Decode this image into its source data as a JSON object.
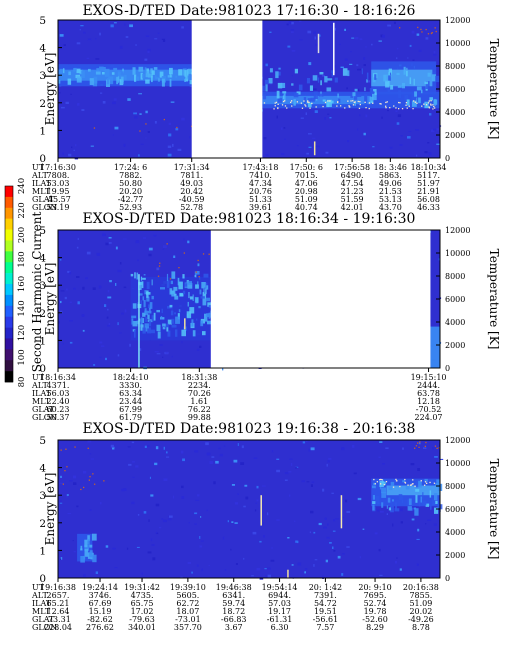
{
  "colorbar": {
    "label": "Second Harmonic Current",
    "ticks": [
      "240",
      "220",
      "200",
      "180",
      "160",
      "140",
      "120",
      "100",
      "80"
    ]
  },
  "panels": [
    {
      "title": "EXOS-D/TED   Date:981023  17:16:30 - 18:16:26",
      "ylabel_left": "Energy [eV]",
      "ylabel_right": "Temperature [K]",
      "gap": [
        0.35,
        0.535
      ],
      "yticks_left": [
        "5",
        "4",
        "3",
        "2",
        "1",
        "0"
      ],
      "yticks_right": [
        "12000",
        "10000",
        "8000",
        "6000",
        "4000",
        "2000",
        "0"
      ],
      "row_labels": [
        "UT",
        "ALT",
        "ILAT",
        "MLT",
        "GLAT",
        "GLON"
      ],
      "columns": [
        {
          "pos": 0.0,
          "values": [
            "17:16:30",
            "7808.",
            "53.03",
            "19.95",
            "-45.57",
            "53.19"
          ]
        },
        {
          "pos": 0.19,
          "values": [
            "17:24: 6",
            "7882.",
            "50.80",
            "20.20",
            "-42.77",
            "52.93"
          ]
        },
        {
          "pos": 0.35,
          "values": [
            "17:31:34",
            "7811.",
            "49.03",
            "20.42",
            "-40.59",
            "52.78"
          ]
        },
        {
          "pos": 0.53,
          "values": [
            "17:43:18",
            "7410.",
            "47.34",
            "20.76",
            "51.33",
            "39.61"
          ]
        },
        {
          "pos": 0.65,
          "values": [
            "17:50: 6",
            "7015.",
            "47.06",
            "20.98",
            "51.09",
            "40.74"
          ]
        },
        {
          "pos": 0.77,
          "values": [
            "17:56:58",
            "6490.",
            "47.54",
            "21.23",
            "51.59",
            "42.01"
          ]
        },
        {
          "pos": 0.87,
          "values": [
            "18: 3:46",
            "5863.",
            "49.06",
            "21.53",
            "53.13",
            "43.70"
          ]
        },
        {
          "pos": 0.97,
          "values": [
            "18:10:34",
            "5117.",
            "51.97",
            "21.91",
            "56.08",
            "46.33"
          ]
        }
      ]
    },
    {
      "title": "EXOS-D/TED   Date:981023  18:16:34 - 19:16:30",
      "ylabel_left": "Energy [eV]",
      "ylabel_right": "Temperature [K]",
      "gap": [
        0.4,
        0.975
      ],
      "yticks_left": [
        "5",
        "4",
        "3",
        "2",
        "1",
        "0"
      ],
      "yticks_right": [
        "12000",
        "10000",
        "8000",
        "6000",
        "4000",
        "2000",
        "0"
      ],
      "row_labels": [
        "UT",
        "ALT",
        "ILAT",
        "MLT",
        "GLAT",
        "GLON"
      ],
      "columns": [
        {
          "pos": 0.0,
          "values": [
            "18:16:34",
            "4371.",
            "56.03",
            "22.40",
            "60.23",
            "50.37"
          ]
        },
        {
          "pos": 0.19,
          "values": [
            "18:24:10",
            "3330.",
            "63.34",
            "23.44",
            "67.99",
            "61.79"
          ]
        },
        {
          "pos": 0.37,
          "values": [
            "18:31:38",
            "2234.",
            "70.26",
            "1.61",
            "76.22",
            "99.88"
          ]
        },
        {
          "pos": 0.97,
          "values": [
            "19:15:10",
            "2444.",
            "63.78",
            "12.18",
            "-70.52",
            "224.07"
          ]
        }
      ]
    },
    {
      "title": "EXOS-D/TED   Date:981023  19:16:38 - 20:16:38",
      "ylabel_left": "Energy [eV]",
      "ylabel_right": "Temperature [K]",
      "gap": null,
      "yticks_left": [
        "5",
        "4",
        "3",
        "2",
        "1",
        "0"
      ],
      "yticks_right": [
        "12000",
        "10000",
        "8000",
        "6000",
        "4000",
        "2000",
        "0"
      ],
      "row_labels": [
        "UT",
        "ALT",
        "ILAT",
        "MLT",
        "GLAT",
        "GLON"
      ],
      "columns": [
        {
          "pos": 0.0,
          "values": [
            "19:16:38",
            "2657.",
            "65.21",
            "12.64",
            "-73.31",
            "228.04"
          ]
        },
        {
          "pos": 0.11,
          "values": [
            "19:24:14",
            "3746.",
            "67.69",
            "15.19",
            "-82.62",
            "276.62"
          ]
        },
        {
          "pos": 0.22,
          "values": [
            "19:31:42",
            "4735.",
            "65.75",
            "17.02",
            "-79.63",
            "340.01"
          ]
        },
        {
          "pos": 0.34,
          "values": [
            "19:39:10",
            "5605.",
            "62.72",
            "18.07",
            "-73.01",
            "357.70"
          ]
        },
        {
          "pos": 0.46,
          "values": [
            "19:46:38",
            "6341.",
            "59.74",
            "18.72",
            "-66.83",
            "3.67"
          ]
        },
        {
          "pos": 0.58,
          "values": [
            "19:54:14",
            "6944.",
            "57.03",
            "19.17",
            "-61.31",
            "6.30"
          ]
        },
        {
          "pos": 0.7,
          "values": [
            "20: 1:42",
            "7391.",
            "54.72",
            "19.51",
            "-56.61",
            "7.57"
          ]
        },
        {
          "pos": 0.83,
          "values": [
            "20: 9:10",
            "7695.",
            "52.74",
            "19.78",
            "-52.60",
            "8.29"
          ]
        },
        {
          "pos": 0.95,
          "values": [
            "20:16:38",
            "7855.",
            "51.09",
            "20.02",
            "-49.26",
            "8.78"
          ]
        }
      ]
    }
  ],
  "chart_data": [
    {
      "type": "heatmap",
      "title": "EXOS-D/TED   Date:981023  17:16:30 - 18:16:26",
      "xlabel": "UT",
      "ylabel": "Energy [eV]",
      "y2label": "Temperature [K]",
      "ylim": [
        0,
        5
      ],
      "y2lim": [
        0,
        12000
      ],
      "x": [
        "17:16:30",
        "17:24: 6",
        "17:31:34",
        "17:43:18",
        "17:50: 6",
        "17:56:58",
        "18: 3:46",
        "18:10:34"
      ],
      "z_label": "Second Harmonic Current",
      "zlim": [
        80,
        240
      ]
    },
    {
      "type": "heatmap",
      "title": "EXOS-D/TED   Date:981023  18:16:34 - 19:16:30",
      "xlabel": "UT",
      "ylabel": "Energy [eV]",
      "y2label": "Temperature [K]",
      "ylim": [
        0,
        5
      ],
      "y2lim": [
        0,
        12000
      ],
      "x": [
        "18:16:34",
        "18:24:10",
        "18:31:38",
        "19:15:10"
      ],
      "z_label": "Second Harmonic Current",
      "zlim": [
        80,
        240
      ]
    },
    {
      "type": "heatmap",
      "title": "EXOS-D/TED   Date:981023  19:16:38 - 20:16:38",
      "xlabel": "UT",
      "ylabel": "Energy [eV]",
      "y2label": "Temperature [K]",
      "ylim": [
        0,
        5
      ],
      "y2lim": [
        0,
        12000
      ],
      "x": [
        "19:16:38",
        "19:24:14",
        "19:31:42",
        "19:39:10",
        "19:46:38",
        "19:54:14",
        "20: 1:42",
        "20: 9:10",
        "20:16:38"
      ],
      "z_label": "Second Harmonic Current",
      "zlim": [
        80,
        240
      ]
    }
  ]
}
